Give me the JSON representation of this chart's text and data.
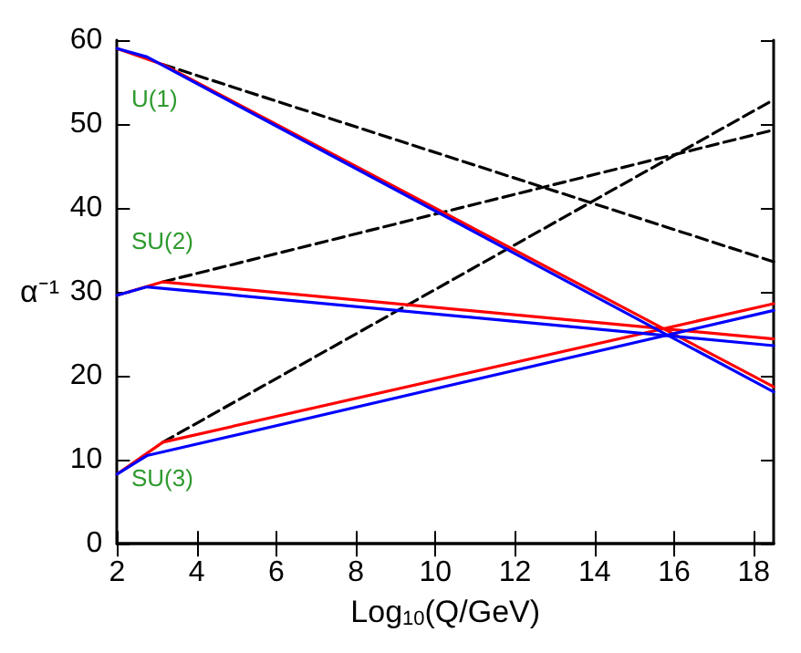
{
  "chart_data": {
    "type": "line",
    "xlabel": "Log$_{10}$(Q/GeV)",
    "ylabel": "α⁻¹",
    "xlim": [
      2,
      18.5
    ],
    "ylim": [
      0,
      60
    ],
    "xticks": [
      2,
      4,
      6,
      8,
      10,
      12,
      14,
      16,
      18
    ],
    "yticks": [
      0,
      10,
      20,
      30,
      40,
      50,
      60
    ],
    "grid": false,
    "marker": "none",
    "series": [
      {
        "color": "#000000",
        "line_style": "dashed",
        "x": [
          3.15,
          18.5
        ],
        "values": [
          57.1,
          33.6
        ]
      },
      {
        "color": "#000000",
        "line_style": "dashed",
        "x": [
          3.15,
          18.5
        ],
        "values": [
          31.2,
          49.3
        ]
      },
      {
        "color": "#000000",
        "line_style": "dashed",
        "x": [
          3.15,
          18.5
        ],
        "values": [
          12.1,
          52.9
        ]
      },
      {
        "color": "#ff0000",
        "line_style": "solid",
        "x": [
          2,
          3.15,
          18.5
        ],
        "values": [
          59,
          57.1,
          18.7
        ]
      },
      {
        "color": "#ff0000",
        "line_style": "solid",
        "x": [
          2,
          3.15,
          18.5
        ],
        "values": [
          29.6,
          31.2,
          24.4
        ]
      },
      {
        "color": "#ff0000",
        "line_style": "solid",
        "x": [
          2,
          3.15,
          18.5
        ],
        "values": [
          8.3,
          12.1,
          28.6
        ]
      },
      {
        "color": "#0000ff",
        "line_style": "solid",
        "x": [
          2,
          2.75,
          18.5
        ],
        "values": [
          59,
          58,
          18.1
        ]
      },
      {
        "color": "#0000ff",
        "line_style": "solid",
        "x": [
          2,
          2.75,
          18.5
        ],
        "values": [
          29.6,
          30.6,
          23.6
        ]
      },
      {
        "color": "#0000ff",
        "line_style": "solid",
        "x": [
          2,
          2.75,
          18.5
        ],
        "values": [
          8.3,
          10.5,
          27.8
        ]
      }
    ],
    "annotations": [
      "U(1)",
      "SU(2)",
      "SU(3)"
    ]
  }
}
